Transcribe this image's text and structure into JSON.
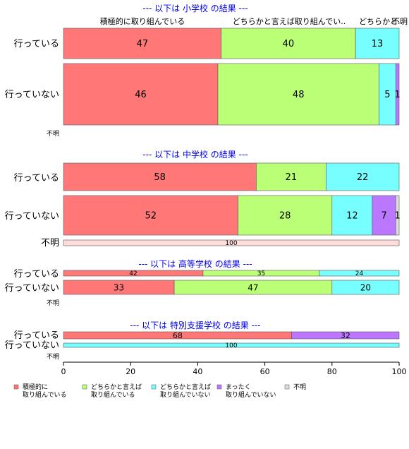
{
  "chart_data": {
    "type": "bar",
    "orientation": "horizontal",
    "stacked": "percent",
    "xlim": [
      0,
      100
    ],
    "x_ticks": [
      "0",
      "20",
      "40",
      "60",
      "80",
      "100"
    ],
    "legend_position": "bottom",
    "series": [
      {
        "name": "積極的に\n取り組んでいる",
        "color": "#ff7777"
      },
      {
        "name": "どちらかと言えば\n取り組んでいる",
        "color": "#bbff77"
      },
      {
        "name": "どちらかと言えば\n取り組んでいない",
        "color": "#77ffff"
      },
      {
        "name": "まったく\n取り組んでいない",
        "color": "#bb77ff"
      },
      {
        "name": "不明",
        "color": "#dddddd"
      }
    ],
    "column_labels": [
      "積極的に取り組んでいる",
      "どちらかと言えば取り組んでい..",
      "どちらかと..",
      "不明"
    ],
    "groups": [
      {
        "title": "--- 以下は 小学校 の結果 ---",
        "rows": [
          {
            "label": "行っている",
            "values": [
              47,
              40,
              13,
              0,
              0
            ],
            "labels": [
              "47",
              "40",
              "13",
              "",
              ""
            ]
          },
          {
            "label": "行っていない",
            "values": [
              46,
              48,
              5,
              1,
              0
            ],
            "labels": [
              "46",
              "48",
              "5",
              "1",
              ""
            ]
          },
          {
            "label": "不明",
            "values": [
              0,
              0,
              0,
              0,
              0
            ],
            "labels": [
              "",
              "",
              "",
              "",
              ""
            ]
          }
        ]
      },
      {
        "title": "--- 以下は 中学校 の結果 ---",
        "rows": [
          {
            "label": "行っている",
            "values": [
              58,
              21,
              22,
              0,
              0
            ],
            "labels": [
              "58",
              "21",
              "22",
              "",
              ""
            ]
          },
          {
            "label": "行っていない",
            "values": [
              52,
              28,
              12,
              7,
              1
            ],
            "labels": [
              "52",
              "28",
              "12",
              "7",
              "1"
            ]
          },
          {
            "label": "不明",
            "values": [
              0,
              0,
              0,
              0,
              100
            ],
            "labels": [
              "",
              "",
              "",
              "",
              "100"
            ]
          }
        ]
      },
      {
        "title": "--- 以下は 高等学校 の結果 ---",
        "rows": [
          {
            "label": "行っている",
            "values": [
              42,
              35,
              24,
              0,
              0
            ],
            "labels": [
              "42",
              "35",
              "24",
              "",
              ""
            ]
          },
          {
            "label": "行っていない",
            "values": [
              33,
              47,
              20,
              0,
              0
            ],
            "labels": [
              "33",
              "47",
              "20",
              "",
              ""
            ]
          },
          {
            "label": "不明",
            "values": [
              0,
              0,
              0,
              0,
              0
            ],
            "labels": [
              "",
              "",
              "",
              "",
              ""
            ]
          }
        ]
      },
      {
        "title": "--- 以下は 特別支援学校 の結果 ---",
        "rows": [
          {
            "label": "行っている",
            "values": [
              68,
              0,
              0,
              32,
              0
            ],
            "labels": [
              "68",
              "",
              "",
              "32",
              ""
            ]
          },
          {
            "label": "行っていない",
            "values": [
              0,
              0,
              100,
              0,
              0
            ],
            "labels": [
              "",
              "",
              "100",
              "",
              ""
            ]
          },
          {
            "label": "不明",
            "values": [
              0,
              0,
              0,
              0,
              0
            ],
            "labels": [
              "",
              "",
              "",
              "",
              ""
            ]
          }
        ]
      }
    ]
  }
}
